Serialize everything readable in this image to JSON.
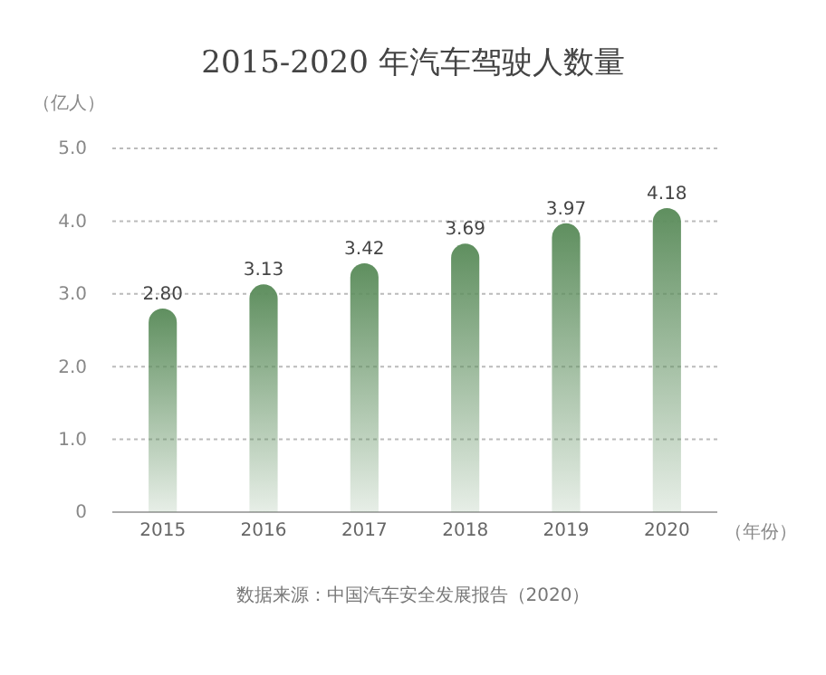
{
  "chart_data": {
    "type": "bar",
    "title": "2015-2020 年汽车驾驶人数量",
    "ylabel": "（亿人）",
    "xlabel": "（年份）",
    "categories": [
      "2015",
      "2016",
      "2017",
      "2018",
      "2019",
      "2020"
    ],
    "values": [
      2.8,
      3.13,
      3.42,
      3.69,
      3.97,
      4.18
    ],
    "color": "#5f8f5f",
    "ylim": [
      0,
      5
    ],
    "yticks": [
      0,
      {
        "value": 1,
        "label": "1.0"
      },
      {
        "value": 2,
        "label": "2.0"
      },
      {
        "value": 3,
        "label": "3.0"
      },
      {
        "value": 4,
        "label": "4.0"
      },
      {
        "value": 5,
        "label": "5.0"
      }
    ],
    "grid": "y",
    "value_labels": [
      "2.80",
      "3.13",
      "3.42",
      "3.69",
      "3.97",
      "4.18"
    ],
    "annotations": [
      "数据来源：中国汽车安全发展报告（2020）"
    ]
  }
}
